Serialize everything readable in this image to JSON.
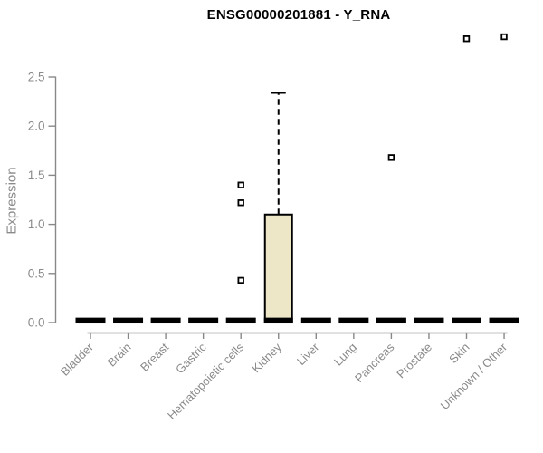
{
  "title": "ENSG00000201881 - Y_RNA",
  "chart_data": {
    "type": "boxplot",
    "title": "ENSG00000201881 - Y_RNA",
    "xlabel": "",
    "ylabel": "Expression",
    "ylim": [
      0,
      2.5
    ],
    "yticks": [
      "0.0",
      "0.5",
      "1.0",
      "1.5",
      "2.0",
      "2.5"
    ],
    "ytick_values": [
      0.0,
      0.5,
      1.0,
      1.5,
      2.0,
      2.5
    ],
    "grid": false,
    "legend": "none",
    "categories": [
      "Bladder",
      "Brain",
      "Breast",
      "Gastric",
      "Hematopoietic cells",
      "Kidney",
      "Liver",
      "Lung",
      "Pancreas",
      "Prostate",
      "Skin",
      "Unknown / Other"
    ],
    "boxes": [
      {
        "category": "Bladder",
        "q1": 0,
        "median": 0.02,
        "q3": 0.04,
        "whisker_low": 0,
        "whisker_high": 0.04,
        "outliers": []
      },
      {
        "category": "Brain",
        "q1": 0,
        "median": 0.02,
        "q3": 0.04,
        "whisker_low": 0,
        "whisker_high": 0.04,
        "outliers": []
      },
      {
        "category": "Breast",
        "q1": 0,
        "median": 0.02,
        "q3": 0.04,
        "whisker_low": 0,
        "whisker_high": 0.04,
        "outliers": []
      },
      {
        "category": "Gastric",
        "q1": 0,
        "median": 0.02,
        "q3": 0.04,
        "whisker_low": 0,
        "whisker_high": 0.04,
        "outliers": []
      },
      {
        "category": "Hematopoietic cells",
        "q1": 0,
        "median": 0.02,
        "q3": 0.04,
        "whisker_low": 0,
        "whisker_high": 0.04,
        "outliers": [
          0.43,
          1.22,
          1.4
        ]
      },
      {
        "category": "Kidney",
        "q1": 0,
        "median": 0.02,
        "q3": 1.1,
        "whisker_low": 0,
        "whisker_high": 2.34,
        "outliers": []
      },
      {
        "category": "Liver",
        "q1": 0,
        "median": 0.02,
        "q3": 0.04,
        "whisker_low": 0,
        "whisker_high": 0.04,
        "outliers": []
      },
      {
        "category": "Lung",
        "q1": 0,
        "median": 0.02,
        "q3": 0.04,
        "whisker_low": 0,
        "whisker_high": 0.04,
        "outliers": []
      },
      {
        "category": "Pancreas",
        "q1": 0,
        "median": 0.02,
        "q3": 0.04,
        "whisker_low": 0,
        "whisker_high": 0.04,
        "outliers": [
          1.68
        ]
      },
      {
        "category": "Prostate",
        "q1": 0,
        "median": 0.02,
        "q3": 0.04,
        "whisker_low": 0,
        "whisker_high": 0.04,
        "outliers": []
      },
      {
        "category": "Skin",
        "q1": 0,
        "median": 0.02,
        "q3": 0.04,
        "whisker_low": 0,
        "whisker_high": 0.04,
        "outliers": [
          2.89
        ]
      },
      {
        "category": "Unknown / Other",
        "q1": 0,
        "median": 0.02,
        "q3": 0.04,
        "whisker_low": 0,
        "whisker_high": 0.04,
        "outliers": [
          2.91
        ]
      }
    ],
    "colors": {
      "box_fill": "#ede7c8",
      "box_stroke": "#000000",
      "median": "#000000",
      "axis_line": "#888888",
      "tick_label": "#8a8a8a",
      "title": "#000000",
      "background": "#ffffff"
    }
  }
}
